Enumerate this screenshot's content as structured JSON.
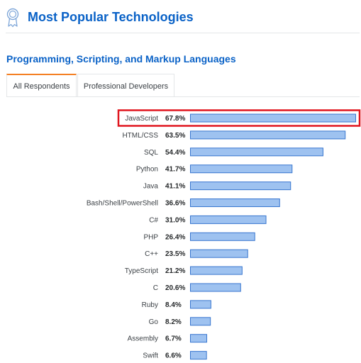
{
  "header": {
    "title": "Most Popular Technologies",
    "icon": "award-ribbon-icon"
  },
  "section": {
    "title": "Programming, Scripting, and Markup Languages"
  },
  "tabs": [
    {
      "label": "All Respondents",
      "active": true
    },
    {
      "label": "Professional Developers",
      "active": false
    }
  ],
  "colors": {
    "accent": "#0a62c7",
    "bar_fill": "#9ec2f0",
    "bar_stroke": "#3876cf",
    "tab_indicator": "#f48024",
    "highlight": "#e0161f"
  },
  "chart_data": {
    "type": "bar",
    "orientation": "horizontal",
    "categories": [
      "JavaScript",
      "HTML/CSS",
      "SQL",
      "Python",
      "Java",
      "Bash/Shell/PowerShell",
      "C#",
      "PHP",
      "C++",
      "TypeScript",
      "C",
      "Ruby",
      "Go",
      "Assembly",
      "Swift"
    ],
    "values": [
      67.8,
      63.5,
      54.4,
      41.7,
      41.1,
      36.6,
      31.0,
      26.4,
      23.5,
      21.2,
      20.6,
      8.4,
      8.2,
      6.7,
      6.6
    ],
    "value_labels": [
      "67.8%",
      "63.5%",
      "54.4%",
      "41.7%",
      "41.1%",
      "36.6%",
      "31.0%",
      "26.4%",
      "23.5%",
      "21.2%",
      "20.6%",
      "8.4%",
      "8.2%",
      "6.7%",
      "6.6%"
    ],
    "unit": "%",
    "highlighted_category": "JavaScript",
    "xlim": [
      0,
      67.8
    ]
  }
}
